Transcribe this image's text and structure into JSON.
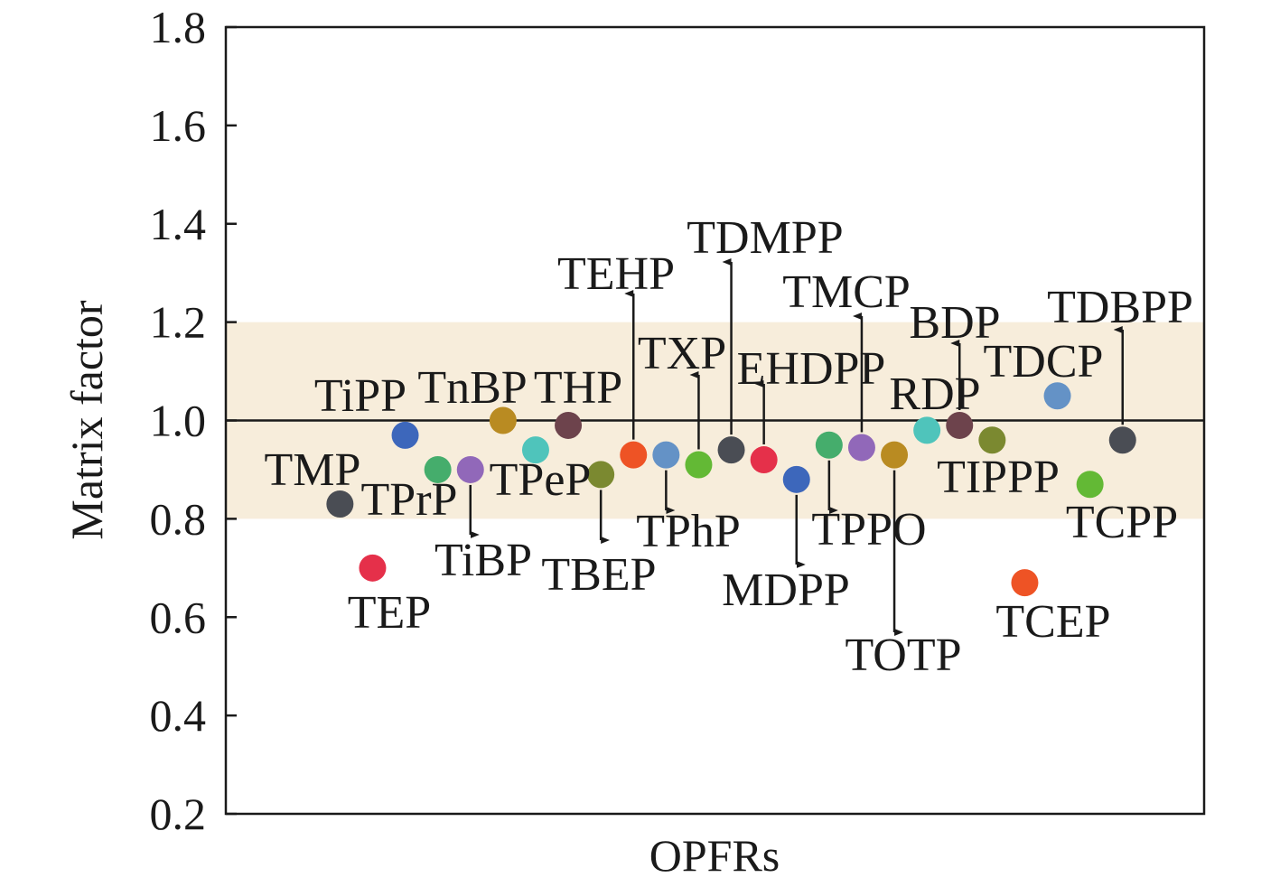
{
  "chart_data": {
    "type": "scatter",
    "title": "",
    "xlabel": "OPFRs",
    "ylabel": "Matrix factor",
    "ylim": [
      0.2,
      1.8
    ],
    "xlim": [
      -3.5,
      26.5
    ],
    "yticks": [
      "0.2",
      "0.4",
      "0.6",
      "0.8",
      "1.0",
      "1.2",
      "1.4",
      "1.6",
      "1.8"
    ],
    "grid": false,
    "reference_line": 1.0,
    "acceptance_band": [
      0.8,
      1.2
    ],
    "band_color": "#f7eddb",
    "points": [
      {
        "name": "TMP",
        "x": 0,
        "y": 0.83,
        "color": "#4a4d54"
      },
      {
        "name": "TEP",
        "x": 1,
        "y": 0.7,
        "color": "#e5304a"
      },
      {
        "name": "TiPP",
        "x": 2,
        "y": 0.97,
        "color": "#3d67bb"
      },
      {
        "name": "TPrP",
        "x": 3,
        "y": 0.9,
        "color": "#45ad6c"
      },
      {
        "name": "TiBP",
        "x": 4,
        "y": 0.9,
        "color": "#9168b9"
      },
      {
        "name": "TnBP",
        "x": 5,
        "y": 1.0,
        "color": "#b98b22"
      },
      {
        "name": "TPeP",
        "x": 6,
        "y": 0.94,
        "color": "#4fc4bb"
      },
      {
        "name": "THP",
        "x": 7,
        "y": 0.99,
        "color": "#6d434c"
      },
      {
        "name": "TBEP",
        "x": 8,
        "y": 0.89,
        "color": "#7b8930"
      },
      {
        "name": "TEHP",
        "x": 9,
        "y": 0.93,
        "color": "#ee5325"
      },
      {
        "name": "TPhP",
        "x": 10,
        "y": 0.93,
        "color": "#6492c6"
      },
      {
        "name": "TXP",
        "x": 11,
        "y": 0.91,
        "color": "#63b935"
      },
      {
        "name": "TDMPP",
        "x": 12,
        "y": 0.94,
        "color": "#4a4d54"
      },
      {
        "name": "EHDPP",
        "x": 13,
        "y": 0.92,
        "color": "#e5304a"
      },
      {
        "name": "MDPP",
        "x": 14,
        "y": 0.88,
        "color": "#3d67bb"
      },
      {
        "name": "TPPO",
        "x": 15,
        "y": 0.95,
        "color": "#45ad6c"
      },
      {
        "name": "TMCP",
        "x": 16,
        "y": 0.945,
        "color": "#9168b9"
      },
      {
        "name": "TOTP",
        "x": 17,
        "y": 0.93,
        "color": "#b98b22"
      },
      {
        "name": "RDP",
        "x": 18,
        "y": 0.98,
        "color": "#4fc4bb"
      },
      {
        "name": "BDP",
        "x": 19,
        "y": 0.99,
        "color": "#6d434c"
      },
      {
        "name": "TIPPP",
        "x": 20,
        "y": 0.96,
        "color": "#7b8930"
      },
      {
        "name": "TCEP",
        "x": 21,
        "y": 0.67,
        "color": "#ee5325"
      },
      {
        "name": "TDCP",
        "x": 22,
        "y": 1.05,
        "color": "#6492c6"
      },
      {
        "name": "TCPP",
        "x": 23,
        "y": 0.87,
        "color": "#63b935"
      },
      {
        "name": "TDBPP",
        "x": 24,
        "y": 0.96,
        "color": "#4a4d54"
      }
    ]
  }
}
